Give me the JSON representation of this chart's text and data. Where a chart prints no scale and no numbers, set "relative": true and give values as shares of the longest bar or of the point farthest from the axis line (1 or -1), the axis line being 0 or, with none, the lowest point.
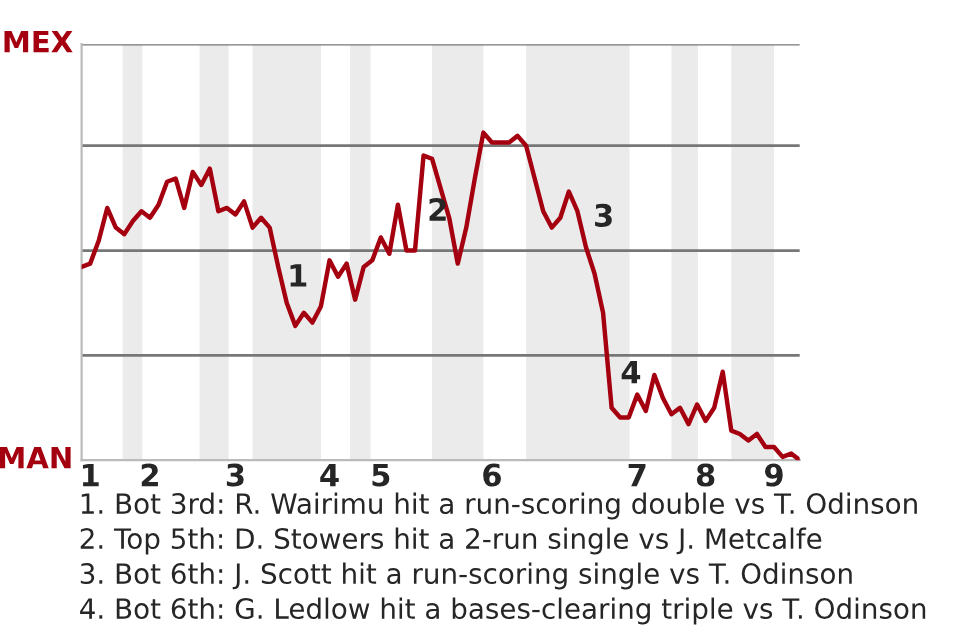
{
  "chart_data": {
    "type": "line",
    "relative": true,
    "categories": [
      null,
      "1",
      null,
      null,
      null,
      null,
      null,
      null,
      "2",
      null,
      null,
      null,
      null,
      null,
      null,
      null,
      null,
      null,
      "3",
      null,
      null,
      null,
      null,
      null,
      null,
      null,
      null,
      null,
      null,
      "4",
      null,
      null,
      null,
      null,
      null,
      "5",
      null,
      null,
      null,
      null,
      null,
      null,
      null,
      null,
      null,
      null,
      null,
      null,
      "6",
      null,
      null,
      null,
      null,
      null,
      null,
      null,
      null,
      null,
      null,
      null,
      null,
      null,
      null,
      null,
      null,
      "7",
      null,
      null,
      null,
      null,
      null,
      null,
      null,
      "8",
      null,
      null,
      null,
      null,
      null,
      null,
      null,
      "9",
      null,
      null,
      null
    ],
    "series": [
      {
        "color": "#a50010",
        "values": [
          0.59,
          0.6,
          0.67,
          0.77,
          0.71,
          0.69,
          0.73,
          0.76,
          0.74,
          0.78,
          0.85,
          0.86,
          0.77,
          0.88,
          0.84,
          0.89,
          0.76,
          0.77,
          0.75,
          0.79,
          0.71,
          0.74,
          0.71,
          0.59,
          0.48,
          0.41,
          0.45,
          0.42,
          0.47,
          0.61,
          0.56,
          0.6,
          0.49,
          0.59,
          0.61,
          0.68,
          0.63,
          0.78,
          0.64,
          0.64,
          0.93,
          0.92,
          0.83,
          0.74,
          0.6,
          0.71,
          0.86,
          1,
          0.97,
          0.97,
          0.97,
          0.99,
          0.96,
          0.86,
          0.76,
          0.71,
          0.74,
          0.82,
          0.76,
          0.65,
          0.57,
          0.45,
          0.16,
          0.13,
          0.13,
          0.2,
          0.15,
          0.26,
          0.19,
          0.14,
          0.16,
          0.11,
          0.17,
          0.12,
          0.16,
          0.27,
          0.09,
          0.08,
          0.06,
          0.08,
          0.04,
          0.04,
          0.01,
          0.02,
          0
        ]
      }
    ],
    "ref_lines": [
      {
        "axis": "y",
        "value": 0.32,
        "color": "#777777"
      },
      {
        "axis": "y",
        "value": 0.64,
        "color": "#777777"
      },
      {
        "axis": "y",
        "value": 0.96,
        "color": "#777777"
      },
      {
        "axis": "y",
        "value": 1.27,
        "color": "#777777"
      }
    ],
    "annotations": [
      "MEX",
      "MAN",
      "1",
      "2",
      "3",
      "4",
      "1. Bot 3rd: R. Wairimu hit a run-scoring double vs T. Odinson",
      "2. Top 5th: D. Stowers hit a 2-run single vs J. Metcalfe",
      "3. Bot 6th: J. Scott hit a run-scoring single vs T. Odinson",
      "4. Bot 6th: G. Ledlow hit a bases-clearing triple vs T. Odinson"
    ]
  }
}
